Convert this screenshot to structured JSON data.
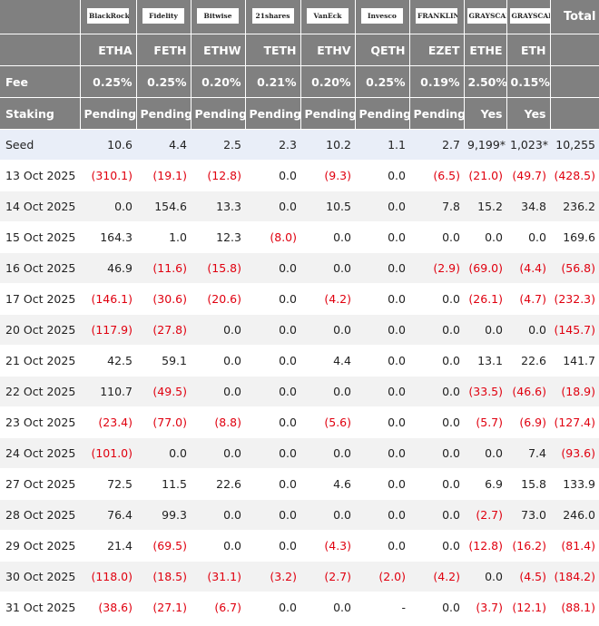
{
  "header": {
    "logos": [
      "BlackRock",
      "Fidelity",
      "Bitwise",
      "21shares",
      "VanEck",
      "Invesco",
      "FRANKLIN TEMPLETON",
      "GRAYSCALE",
      "GRAYSCALE"
    ],
    "total": "Total",
    "tickers": [
      "ETHA",
      "FETH",
      "ETHW",
      "TETH",
      "ETHV",
      "QETH",
      "EZET",
      "ETHE",
      "ETH"
    ]
  },
  "fee": {
    "label": "Fee",
    "values": [
      "0.25%",
      "0.25%",
      "0.20%",
      "0.21%",
      "0.20%",
      "0.25%",
      "0.19%",
      "2.50%",
      "0.15%"
    ]
  },
  "staking": {
    "label": "Staking",
    "values": [
      "Pending",
      "Pending",
      "Pending",
      "Pending",
      "Pending",
      "Pending",
      "Pending",
      "Yes",
      "Yes"
    ]
  },
  "rows": [
    {
      "label": "Seed",
      "values": [
        "10.6",
        "4.4",
        "2.5",
        "2.3",
        "10.2",
        "1.1",
        "2.7",
        "9,199*",
        "1,023*",
        "10,255"
      ]
    },
    {
      "label": "13 Oct 2025",
      "values": [
        "(310.1)",
        "(19.1)",
        "(12.8)",
        "0.0",
        "(9.3)",
        "0.0",
        "(6.5)",
        "(21.0)",
        "(49.7)",
        "(428.5)"
      ]
    },
    {
      "label": "14 Oct 2025",
      "values": [
        "0.0",
        "154.6",
        "13.3",
        "0.0",
        "10.5",
        "0.0",
        "7.8",
        "15.2",
        "34.8",
        "236.2"
      ]
    },
    {
      "label": "15 Oct 2025",
      "values": [
        "164.3",
        "1.0",
        "12.3",
        "(8.0)",
        "0.0",
        "0.0",
        "0.0",
        "0.0",
        "0.0",
        "169.6"
      ]
    },
    {
      "label": "16 Oct 2025",
      "values": [
        "46.9",
        "(11.6)",
        "(15.8)",
        "0.0",
        "0.0",
        "0.0",
        "(2.9)",
        "(69.0)",
        "(4.4)",
        "(56.8)"
      ]
    },
    {
      "label": "17 Oct 2025",
      "values": [
        "(146.1)",
        "(30.6)",
        "(20.6)",
        "0.0",
        "(4.2)",
        "0.0",
        "0.0",
        "(26.1)",
        "(4.7)",
        "(232.3)"
      ]
    },
    {
      "label": "20 Oct 2025",
      "values": [
        "(117.9)",
        "(27.8)",
        "0.0",
        "0.0",
        "0.0",
        "0.0",
        "0.0",
        "0.0",
        "0.0",
        "(145.7)"
      ]
    },
    {
      "label": "21 Oct 2025",
      "values": [
        "42.5",
        "59.1",
        "0.0",
        "0.0",
        "4.4",
        "0.0",
        "0.0",
        "13.1",
        "22.6",
        "141.7"
      ]
    },
    {
      "label": "22 Oct 2025",
      "values": [
        "110.7",
        "(49.5)",
        "0.0",
        "0.0",
        "0.0",
        "0.0",
        "0.0",
        "(33.5)",
        "(46.6)",
        "(18.9)"
      ]
    },
    {
      "label": "23 Oct 2025",
      "values": [
        "(23.4)",
        "(77.0)",
        "(8.8)",
        "0.0",
        "(5.6)",
        "0.0",
        "0.0",
        "(5.7)",
        "(6.9)",
        "(127.4)"
      ]
    },
    {
      "label": "24 Oct 2025",
      "values": [
        "(101.0)",
        "0.0",
        "0.0",
        "0.0",
        "0.0",
        "0.0",
        "0.0",
        "0.0",
        "7.4",
        "(93.6)"
      ]
    },
    {
      "label": "27 Oct 2025",
      "values": [
        "72.5",
        "11.5",
        "22.6",
        "0.0",
        "4.6",
        "0.0",
        "0.0",
        "6.9",
        "15.8",
        "133.9"
      ]
    },
    {
      "label": "28 Oct 2025",
      "values": [
        "76.4",
        "99.3",
        "0.0",
        "0.0",
        "0.0",
        "0.0",
        "0.0",
        "(2.7)",
        "73.0",
        "246.0"
      ]
    },
    {
      "label": "29 Oct 2025",
      "values": [
        "21.4",
        "(69.5)",
        "0.0",
        "0.0",
        "(4.3)",
        "0.0",
        "0.0",
        "(12.8)",
        "(16.2)",
        "(81.4)"
      ]
    },
    {
      "label": "30 Oct 2025",
      "values": [
        "(118.0)",
        "(18.5)",
        "(31.1)",
        "(3.2)",
        "(2.7)",
        "(2.0)",
        "(4.2)",
        "0.0",
        "(4.5)",
        "(184.2)"
      ]
    },
    {
      "label": "31 Oct 2025",
      "values": [
        "(38.6)",
        "(27.1)",
        "(6.7)",
        "0.0",
        "0.0",
        "-",
        "0.0",
        "(3.7)",
        "(12.1)",
        "(88.1)"
      ]
    }
  ]
}
